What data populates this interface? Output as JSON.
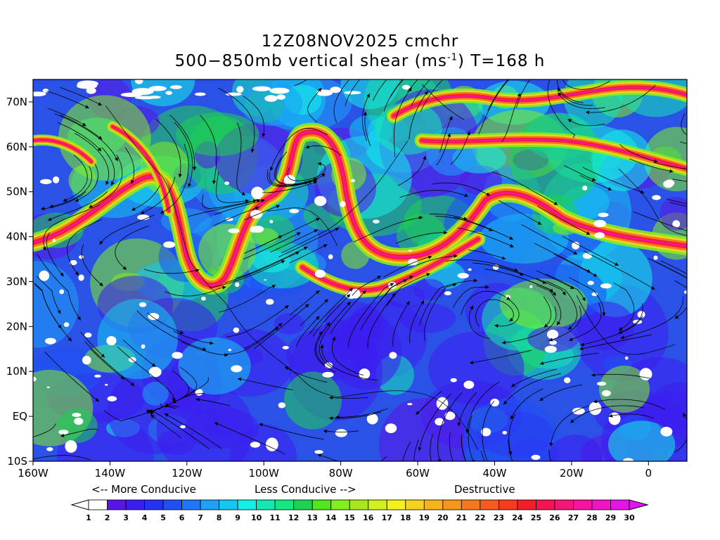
{
  "title_line1": "12Z08NOV2025 cmchr",
  "title_line2_pre": "500−850mb vertical shear (ms",
  "title_line2_sup": "-1",
  "title_line2_post": ") T=168 h",
  "lat_labels": [
    "70N",
    "60N",
    "50N",
    "40N",
    "30N",
    "20N",
    "10N",
    "EQ",
    "10S"
  ],
  "lat_values": [
    70,
    60,
    50,
    40,
    30,
    20,
    10,
    0,
    -10
  ],
  "lon_labels": [
    "160W",
    "140W",
    "120W",
    "100W",
    "80W",
    "60W",
    "40W",
    "20W",
    "0"
  ],
  "lon_values": [
    -160,
    -140,
    -120,
    -100,
    -80,
    -60,
    -40,
    -20,
    0
  ],
  "map_extent": {
    "lon_min": -160,
    "lon_max": 10,
    "lat_min": -10,
    "lat_max": 75
  },
  "legend_text": {
    "more": "<-- More Conducive",
    "less": "Less Conducive -->",
    "destructive": "Destructive"
  },
  "colorbar": {
    "labels": [
      "1",
      "2",
      "3",
      "4",
      "5",
      "6",
      "7",
      "8",
      "9",
      "10",
      "11",
      "12",
      "13",
      "14",
      "15",
      "16",
      "17",
      "18",
      "19",
      "20",
      "21",
      "22",
      "23",
      "24",
      "25",
      "26",
      "27",
      "28",
      "29",
      "30"
    ],
    "colors": [
      "#ffffff",
      "#5a14e6",
      "#3c1ef0",
      "#2332f5",
      "#1e50f5",
      "#1e78f5",
      "#1ea0f5",
      "#14c8f0",
      "#14f0e6",
      "#14e6b4",
      "#14e682",
      "#1ed250",
      "#50e61e",
      "#82f01e",
      "#aae61e",
      "#d2f01e",
      "#f5f01e",
      "#f5d21e",
      "#f5b41e",
      "#f5961e",
      "#f5781e",
      "#f55a1e",
      "#f53c1e",
      "#f51e28",
      "#f51450",
      "#f51478",
      "#f514a0",
      "#f014c8",
      "#e614e6"
    ],
    "under_color": "#ffffff",
    "over_color": "#e614f0"
  }
}
